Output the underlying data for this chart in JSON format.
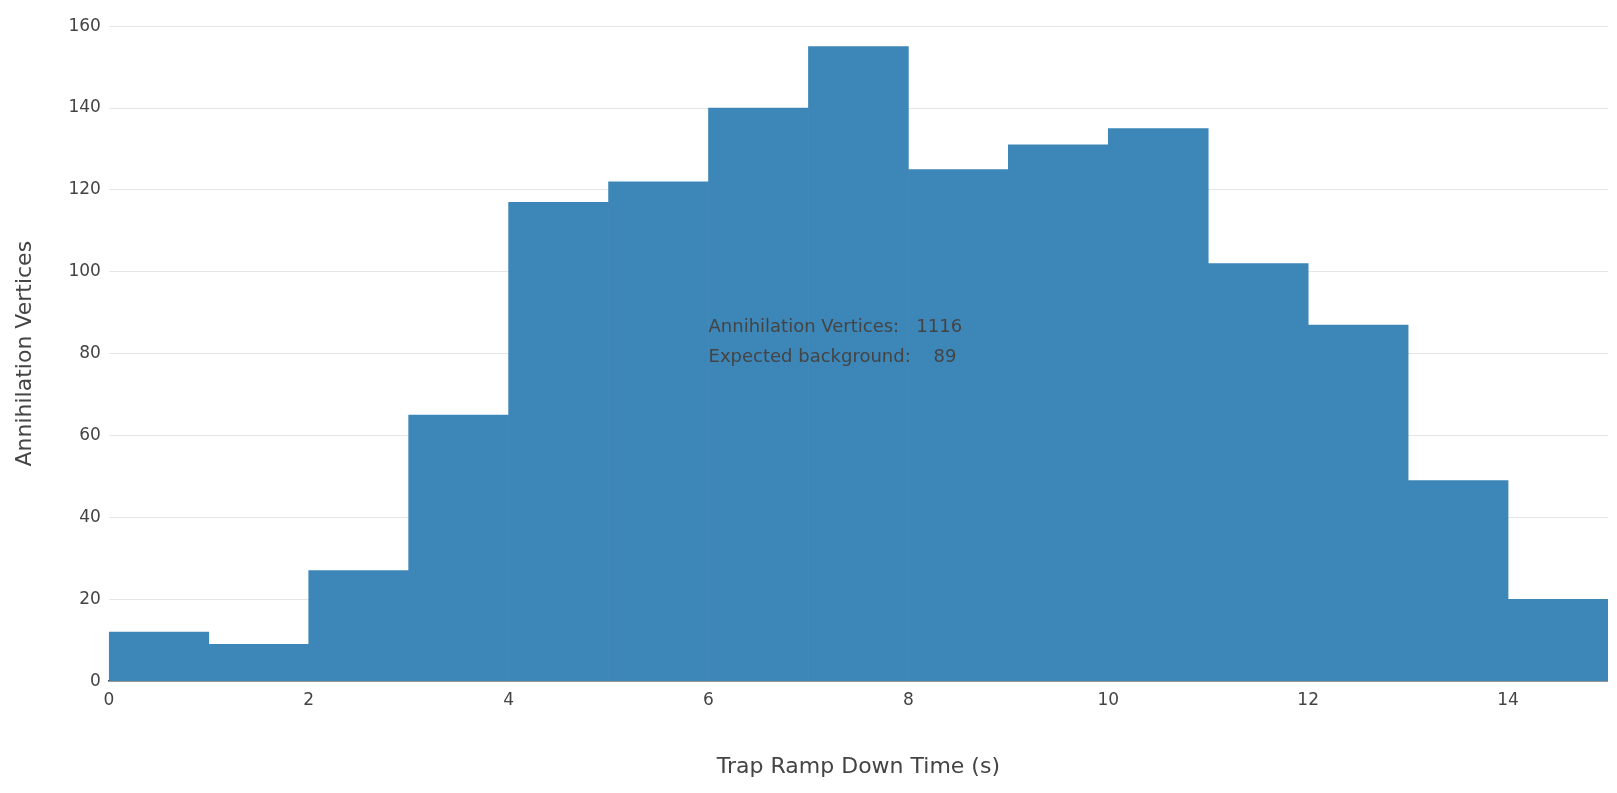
{
  "chart_data": {
    "type": "histogram",
    "xlabel": "Trap Ramp Down Time (s)",
    "ylabel": "Annihilation Vertices",
    "bins": [
      0,
      1,
      2,
      3,
      4,
      5,
      6,
      7,
      8,
      9,
      10,
      11,
      12,
      13,
      14,
      15
    ],
    "values": [
      12,
      9,
      27,
      65,
      117,
      122,
      140,
      155,
      125,
      131,
      135,
      102,
      87,
      49,
      20
    ],
    "color": "#3d86b8",
    "xlim": [
      0,
      15
    ],
    "xticks": [
      0,
      2,
      4,
      6,
      8,
      10,
      12,
      14
    ],
    "ylim": [
      0,
      160
    ],
    "yticks": [
      0,
      20,
      40,
      60,
      80,
      100,
      120,
      140,
      160
    ],
    "grid": "y",
    "annotations": [
      "Annihilation Vertices:   1116",
      "Expected background:    89"
    ]
  }
}
